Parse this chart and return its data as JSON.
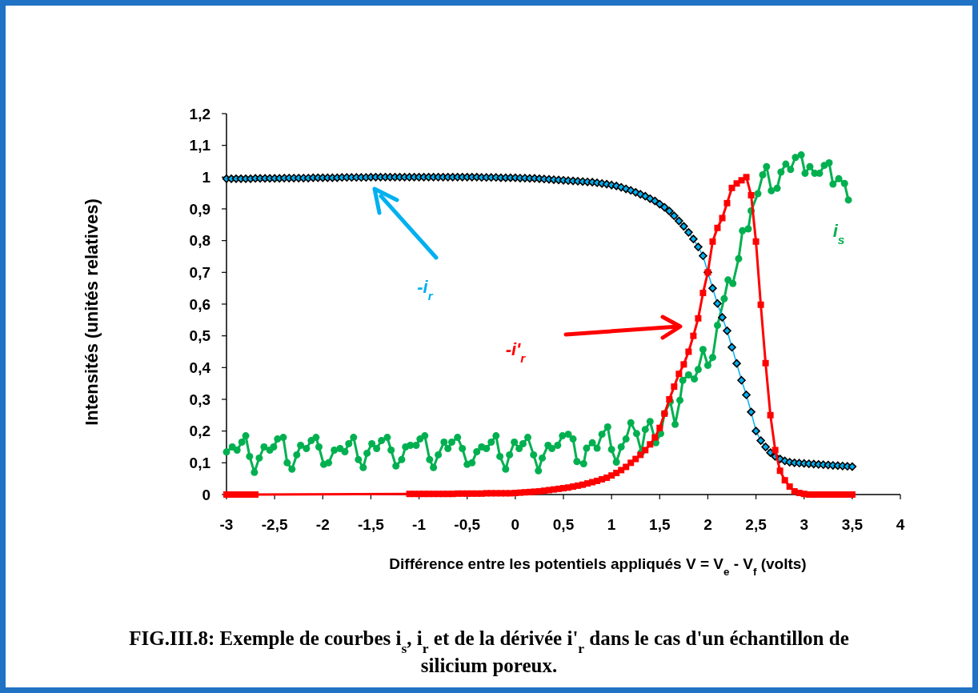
{
  "chart_data": {
    "type": "line",
    "title": "FIG.III.8: Exemple de courbes i$_{s}$, i$_{r}$ et de la dérivée i'$_{r}$ dans le cas d'un échantillon de silicium poreux.",
    "xlabel": "Différence entre les potentiels appliqués V = V$_{e}$ - V$_{f}$ (volts)",
    "ylabel": "Intensités (unités relatives)",
    "xlim": [
      -3,
      4
    ],
    "xticks": [
      -3,
      {
        "value": -2.5,
        "label": "-2,5"
      },
      -2,
      {
        "value": -1.5,
        "label": "-1,5"
      },
      -1,
      {
        "value": -0.5,
        "label": "-0,5"
      },
      0,
      {
        "value": 0.5,
        "label": "0,5"
      },
      1,
      {
        "value": 1.5,
        "label": "1,5"
      },
      2,
      {
        "value": 2.5,
        "label": "2,5"
      },
      3,
      {
        "value": 3.5,
        "label": "3,5"
      },
      4
    ],
    "ylim": [
      0,
      1.2
    ],
    "yticks": [
      0,
      {
        "value": 0.1,
        "label": "0,1"
      },
      {
        "value": 0.2,
        "label": "0,2"
      },
      {
        "value": 0.3,
        "label": "0,3"
      },
      {
        "value": 0.4,
        "label": "0,4"
      },
      {
        "value": 0.5,
        "label": "0,5"
      },
      {
        "value": 0.6,
        "label": "0,6"
      },
      {
        "value": 0.7,
        "label": "0,7"
      },
      {
        "value": 0.8,
        "label": "0,8"
      },
      {
        "value": 0.9,
        "label": "0,9"
      },
      1,
      {
        "value": 1.1,
        "label": "1,1"
      },
      {
        "value": 1.2,
        "label": "1,2"
      }
    ],
    "grid": false,
    "series": [
      {
        "name": "i$_{s}$",
        "color": "#00b050",
        "marker": "circle",
        "x": [
          -3.0,
          -2.94,
          -2.89,
          -2.84,
          -2.8,
          -2.76,
          -2.71,
          -2.66,
          -2.61,
          -2.55,
          -2.51,
          -2.47,
          -2.41,
          -2.37,
          -2.32,
          -2.27,
          -2.23,
          -2.17,
          -2.12,
          -2.07,
          -2.04,
          -1.99,
          -1.94,
          -1.88,
          -1.82,
          -1.77,
          -1.73,
          -1.68,
          -1.63,
          -1.58,
          -1.54,
          -1.49,
          -1.44,
          -1.39,
          -1.33,
          -1.29,
          -1.24,
          -1.18,
          -1.14,
          -1.09,
          -1.03,
          -0.99,
          -0.94,
          -0.89,
          -0.85,
          -0.8,
          -0.74,
          -0.7,
          -0.66,
          -0.6,
          -0.55,
          -0.5,
          -0.45,
          -0.4,
          -0.35,
          -0.3,
          -0.25,
          -0.2,
          -0.16,
          -0.1,
          -0.06,
          -0.01,
          0.04,
          0.08,
          0.13,
          0.19,
          0.24,
          0.28,
          0.34,
          0.38,
          0.44,
          0.49,
          0.55,
          0.6,
          0.64,
          0.71,
          0.74,
          0.8,
          0.85,
          0.9,
          0.96,
          1.0,
          1.05,
          1.1,
          1.15,
          1.2,
          1.26,
          1.31,
          1.35,
          1.4,
          1.46,
          1.51,
          1.55,
          1.61,
          1.66,
          1.71,
          1.74,
          1.8,
          1.86,
          1.9,
          1.95,
          2.0,
          2.05,
          2.1,
          2.17,
          2.21,
          2.26,
          2.32,
          2.36,
          2.42,
          2.45,
          2.52,
          2.57,
          2.61,
          2.66,
          2.72,
          2.76,
          2.81,
          2.86,
          2.91,
          2.97,
          3.01,
          3.06,
          3.11,
          3.16,
          3.21,
          3.26,
          3.3,
          3.36,
          3.42,
          3.46
        ],
        "values": [
          0.134,
          0.15,
          0.14,
          0.165,
          0.185,
          0.12,
          0.07,
          0.115,
          0.15,
          0.14,
          0.15,
          0.175,
          0.18,
          0.1,
          0.08,
          0.125,
          0.155,
          0.145,
          0.17,
          0.18,
          0.15,
          0.095,
          0.1,
          0.14,
          0.145,
          0.135,
          0.16,
          0.18,
          0.11,
          0.085,
          0.13,
          0.16,
          0.145,
          0.17,
          0.18,
          0.14,
          0.09,
          0.11,
          0.15,
          0.155,
          0.155,
          0.175,
          0.185,
          0.11,
          0.085,
          0.125,
          0.165,
          0.145,
          0.165,
          0.18,
          0.145,
          0.095,
          0.1,
          0.135,
          0.15,
          0.145,
          0.165,
          0.185,
          0.12,
          0.08,
          0.125,
          0.165,
          0.145,
          0.16,
          0.18,
          0.125,
          0.075,
          0.115,
          0.155,
          0.145,
          0.155,
          0.185,
          0.19,
          0.175,
          0.104,
          0.097,
          0.146,
          0.163,
          0.146,
          0.19,
          0.213,
          0.142,
          0.102,
          0.15,
          0.175,
          0.226,
          0.192,
          0.133,
          0.205,
          0.23,
          0.163,
          0.192,
          0.255,
          0.293,
          0.221,
          0.297,
          0.36,
          0.377,
          0.364,
          0.394,
          0.457,
          0.407,
          0.432,
          0.533,
          0.617,
          0.676,
          0.665,
          0.743,
          0.831,
          0.837,
          0.894,
          0.948,
          1.007,
          1.033,
          0.957,
          0.965,
          1.016,
          1.041,
          1.024,
          1.062,
          1.07,
          1.012,
          1.033,
          1.012,
          1.012,
          1.037,
          1.045,
          0.978,
          0.995,
          0.98,
          0.928
        ]
      },
      {
        "name": "-i$_{r}$",
        "color": "#00b0f0",
        "marker": "diamond",
        "x": [
          -3,
          -2.95,
          -2.9,
          -2.85,
          -2.8,
          -2.75,
          -2.7,
          -2.65,
          -2.6,
          -2.55,
          -2.5,
          -2.45,
          -2.4,
          -2.35,
          -2.3,
          -2.25,
          -2.2,
          -2.15,
          -2.1,
          -2.05,
          -2,
          -1.95,
          -1.9,
          -1.85,
          -1.8,
          -1.75,
          -1.7,
          -1.65,
          -1.6,
          -1.55,
          -1.5,
          -1.45,
          -1.4,
          -1.35,
          -1.3,
          -1.25,
          -1.2,
          -1.15,
          -1.1,
          -1.05,
          -1,
          -0.95,
          -0.9,
          -0.85,
          -0.8,
          -0.75,
          -0.7,
          -0.65,
          -0.6,
          -0.55,
          -0.5,
          -0.45,
          -0.4,
          -0.35,
          -0.3,
          -0.25,
          -0.2,
          -0.15,
          -0.1,
          -0.05,
          0,
          0.05,
          0.1,
          0.15,
          0.2,
          0.25,
          0.3,
          0.35,
          0.4,
          0.45,
          0.5,
          0.55,
          0.6,
          0.65,
          0.7,
          0.75,
          0.8,
          0.85,
          0.9,
          0.95,
          1,
          1.05,
          1.1,
          1.15,
          1.2,
          1.25,
          1.3,
          1.35,
          1.4,
          1.45,
          1.5,
          1.55,
          1.6,
          1.65,
          1.7,
          1.75,
          1.8,
          1.85,
          1.9,
          1.95,
          2,
          2.05,
          2.1,
          2.15,
          2.2,
          2.25,
          2.3,
          2.35,
          2.4,
          2.45,
          2.5,
          2.55,
          2.6,
          2.65,
          2.7,
          2.75,
          2.8,
          2.85,
          2.9,
          2.95,
          3,
          3.05,
          3.1,
          3.15,
          3.2,
          3.25,
          3.3,
          3.35,
          3.4,
          3.45,
          3.5
        ],
        "values": [
          0.995,
          0.995,
          0.995,
          0.995,
          0.995,
          0.995,
          0.996,
          0.996,
          0.996,
          0.996,
          0.996,
          0.996,
          0.997,
          0.997,
          0.997,
          0.997,
          0.997,
          0.997,
          0.998,
          0.998,
          0.998,
          0.998,
          0.998,
          0.998,
          0.999,
          0.999,
          0.999,
          0.999,
          0.999,
          0.999,
          1,
          1,
          1,
          1,
          1,
          1,
          1,
          1,
          1,
          1,
          1,
          1,
          1,
          1,
          1,
          1,
          1,
          1,
          1,
          1,
          1,
          1,
          1,
          0.999,
          0.999,
          0.999,
          0.999,
          0.998,
          0.998,
          0.998,
          0.998,
          0.997,
          0.997,
          0.996,
          0.996,
          0.995,
          0.994,
          0.993,
          0.992,
          0.991,
          0.99,
          0.989,
          0.988,
          0.987,
          0.986,
          0.985,
          0.984,
          0.982,
          0.98,
          0.978,
          0.975,
          0.972,
          0.968,
          0.963,
          0.958,
          0.952,
          0.946,
          0.94,
          0.932,
          0.925,
          0.915,
          0.905,
          0.893,
          0.878,
          0.862,
          0.845,
          0.826,
          0.805,
          0.78,
          0.752,
          0.7,
          0.65,
          0.602,
          0.558,
          0.516,
          0.464,
          0.413,
          0.36,
          0.314,
          0.26,
          0.2,
          0.17,
          0.15,
          0.132,
          0.12,
          0.112,
          0.106,
          0.102,
          0.1,
          0.099,
          0.098,
          0.097,
          0.096,
          0.095,
          0.094,
          0.093,
          0.092,
          0.091,
          0.09,
          0.089,
          0.088
        ]
      },
      {
        "name": "-i'$_{r}$",
        "color": "#ff0000",
        "marker": "square",
        "x": [
          -3,
          -2.95,
          -2.9,
          -2.85,
          -2.8,
          -2.75,
          -2.7,
          -1.1,
          -1.05,
          -1,
          -0.95,
          -0.9,
          -0.85,
          -0.8,
          -0.75,
          -0.7,
          -0.65,
          -0.6,
          -0.55,
          -0.5,
          -0.45,
          -0.4,
          -0.35,
          -0.3,
          -0.25,
          -0.2,
          -0.15,
          -0.1,
          -0.05,
          0,
          0.05,
          0.1,
          0.15,
          0.2,
          0.25,
          0.3,
          0.35,
          0.4,
          0.45,
          0.5,
          0.55,
          0.6,
          0.65,
          0.7,
          0.75,
          0.8,
          0.85,
          0.9,
          0.95,
          1,
          1.05,
          1.1,
          1.15,
          1.2,
          1.25,
          1.3,
          1.35,
          1.4,
          1.45,
          1.5,
          1.55,
          1.6,
          1.65,
          1.7,
          1.75,
          1.8,
          1.85,
          1.9,
          1.95,
          2,
          2.05,
          2.1,
          2.15,
          2.2,
          2.25,
          2.3,
          2.35,
          2.4,
          2.45,
          2.5,
          2.55,
          2.6,
          2.65,
          2.7,
          2.75,
          2.8,
          2.85,
          2.9,
          2.95,
          3,
          3.05,
          3.1,
          3.15,
          3.2,
          3.25,
          3.3,
          3.35,
          3.4,
          3.45,
          3.5
        ],
        "values": [
          0,
          0,
          0,
          0,
          0,
          0,
          0,
          0.002,
          0.002,
          0.002,
          0.002,
          0.002,
          0.002,
          0.002,
          0.002,
          0.002,
          0.002,
          0.003,
          0.003,
          0.003,
          0.003,
          0.003,
          0.003,
          0.004,
          0.004,
          0.004,
          0.004,
          0.004,
          0.004,
          0.005,
          0.006,
          0.007,
          0.008,
          0.009,
          0.01,
          0.012,
          0.014,
          0.016,
          0.018,
          0.02,
          0.022,
          0.025,
          0.028,
          0.031,
          0.035,
          0.039,
          0.043,
          0.048,
          0.053,
          0.06,
          0.068,
          0.077,
          0.087,
          0.1,
          0.112,
          0.125,
          0.14,
          0.158,
          0.18,
          0.21,
          0.255,
          0.3,
          0.34,
          0.38,
          0.41,
          0.45,
          0.5,
          0.555,
          0.635,
          0.7,
          0.797,
          0.84,
          0.871,
          0.918,
          0.966,
          0.98,
          0.99,
          1,
          0.943,
          0.797,
          0.598,
          0.414,
          0.25,
          0.14,
          0.075,
          0.045,
          0.025,
          0.01,
          0.005,
          0.002,
          0,
          0,
          0,
          0,
          0,
          0,
          0,
          0,
          0,
          0
        ]
      }
    ]
  }
}
